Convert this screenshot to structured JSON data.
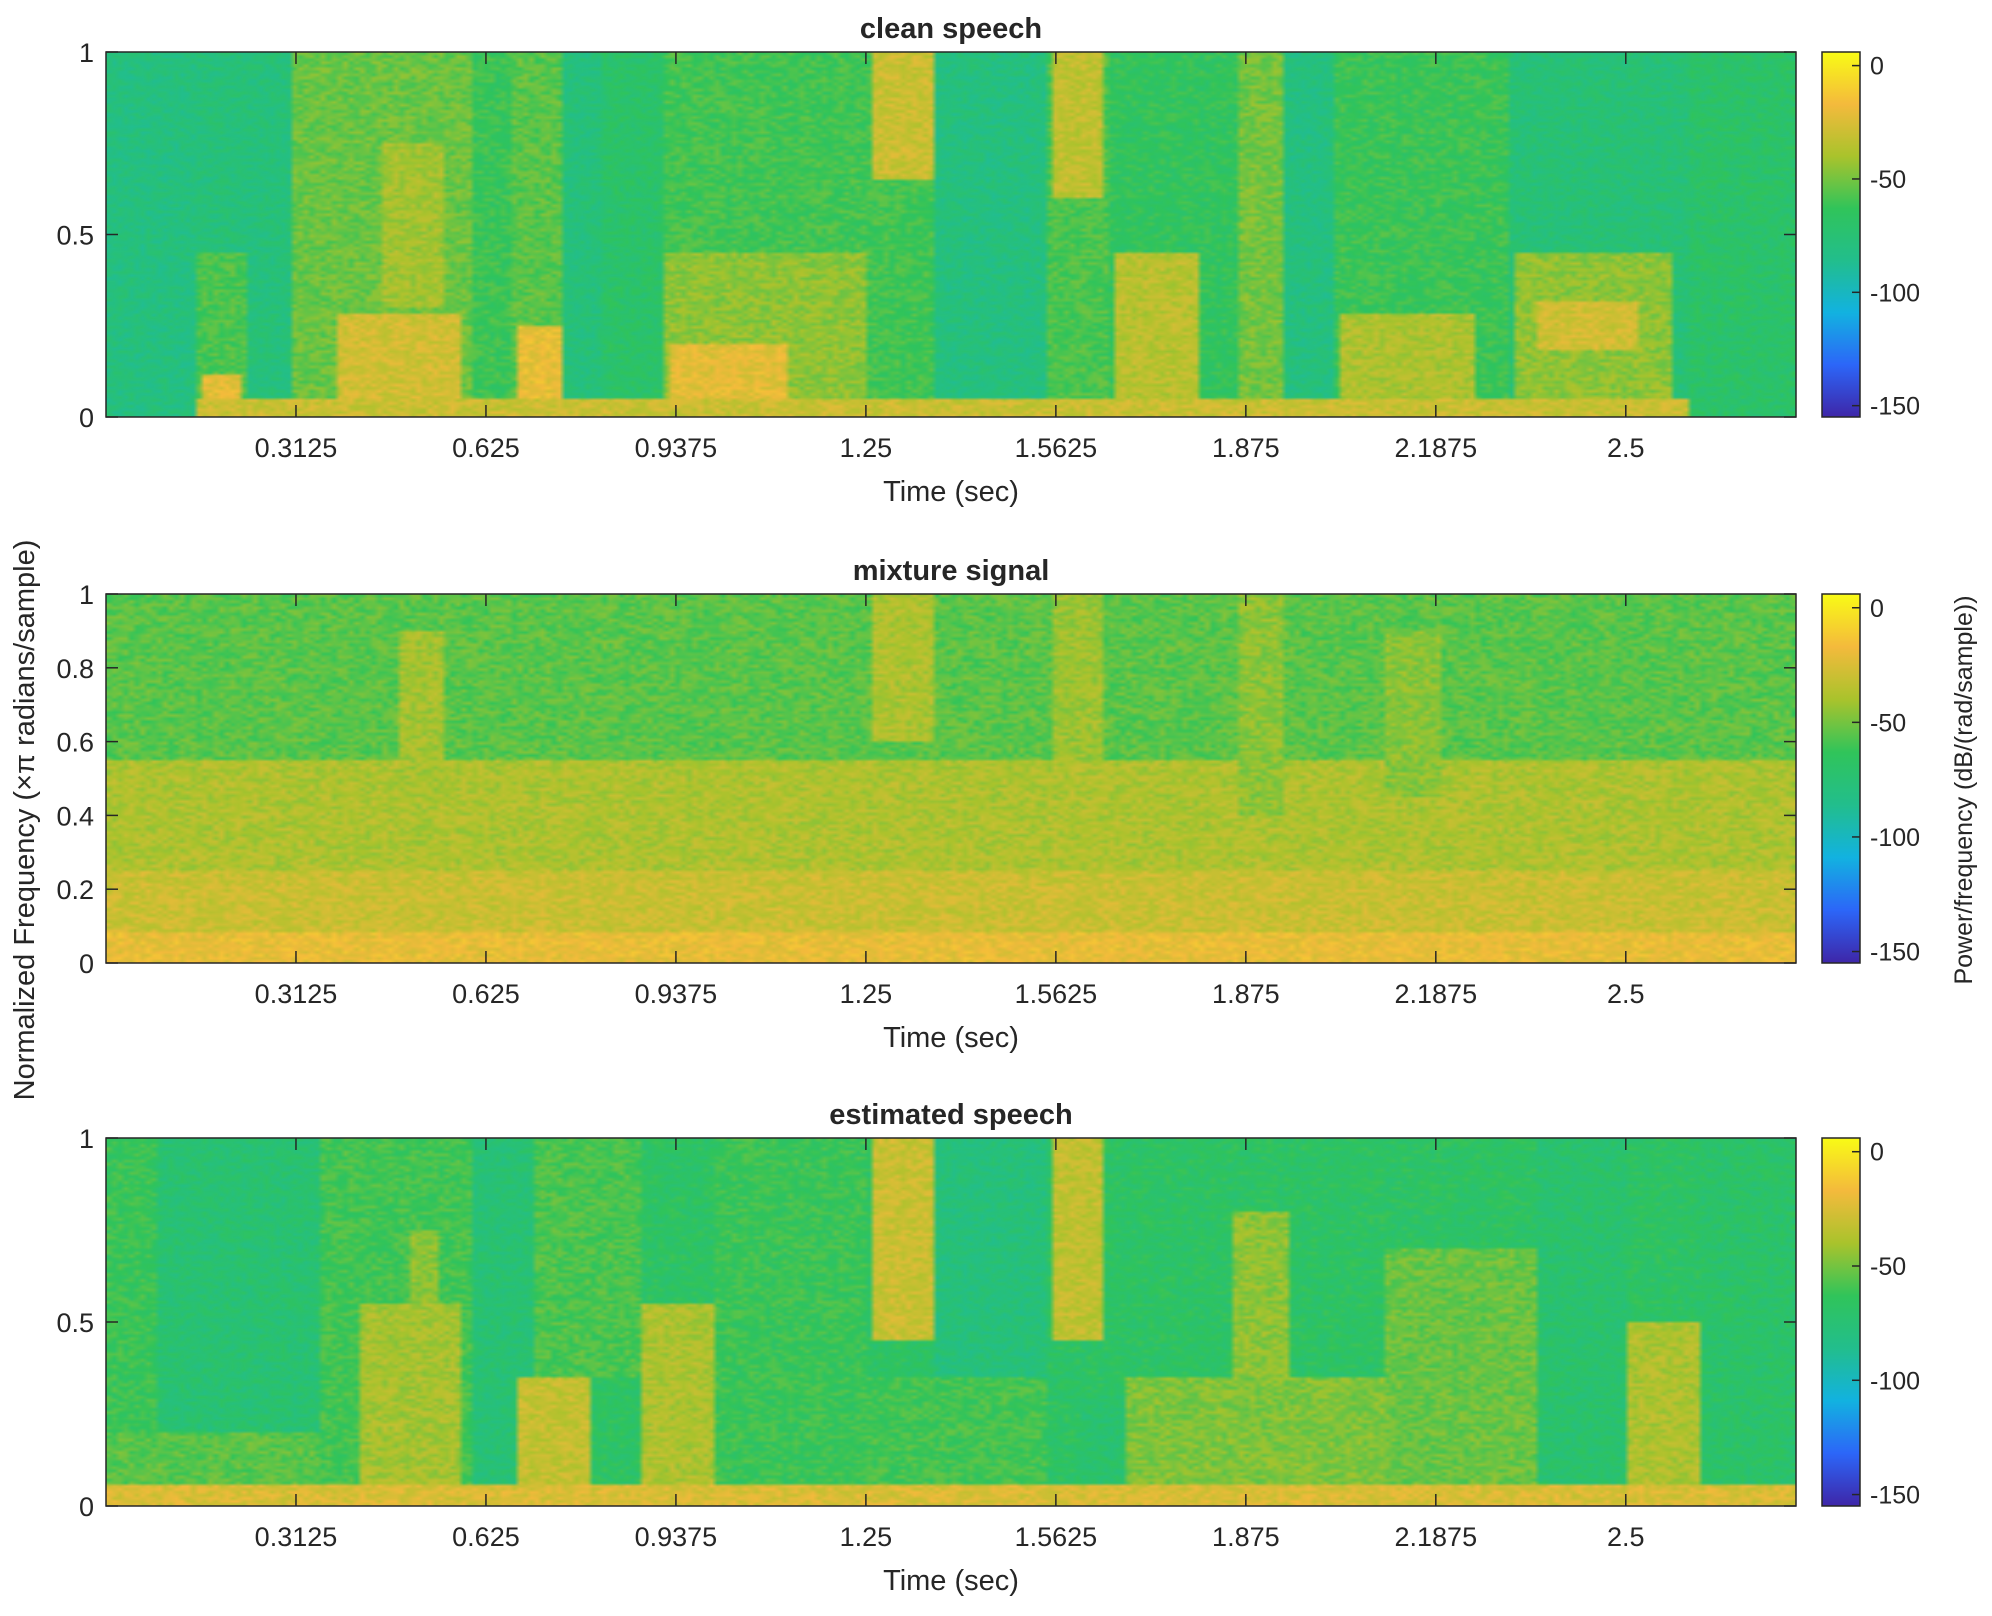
{
  "figure": {
    "ylabel": "Normalized Frequency (×π radians/sample)",
    "colorbar_label": "Power/frequency (dB/(rad/sample))"
  },
  "colormap": [
    "#3e26a8",
    "#2c66f8",
    "#12b2e0",
    "#22be8c",
    "#30c45a",
    "#a9c32c",
    "#f4ba3c",
    "#f9fb15"
  ],
  "chart_data": [
    {
      "type": "heatmap",
      "title": "clean speech",
      "xlabel": "Time (sec)",
      "x_ticks": [
        0.3125,
        0.625,
        0.9375,
        1.25,
        1.5625,
        1.875,
        2.1875,
        2.5
      ],
      "x_tick_labels": [
        "0.3125",
        "0.625",
        "0.9375",
        "1.25",
        "1.5625",
        "1.875",
        "2.1875",
        "2.5"
      ],
      "xlim": [
        0,
        2.78
      ],
      "y_ticks": [
        0,
        0.5,
        1
      ],
      "y_tick_labels": [
        "0",
        "0.5",
        "1"
      ],
      "ylim": [
        0,
        1
      ],
      "colorbar": {
        "ticks": [
          0,
          -50,
          -100,
          -150
        ],
        "tick_labels": [
          "0",
          "-50",
          "-100",
          "-150"
        ],
        "range": [
          -155,
          6
        ]
      },
      "background_db": -75,
      "regions": [
        {
          "t": [
            0.0,
            0.15
          ],
          "f": [
            0.0,
            1.0
          ],
          "db": -80
        },
        {
          "t": [
            0.15,
            0.31
          ],
          "f": [
            0.0,
            1.0
          ],
          "db": -78
        },
        {
          "t": [
            0.15,
            0.23
          ],
          "f": [
            0.0,
            0.45
          ],
          "db": -58
        },
        {
          "t": [
            0.16,
            0.22
          ],
          "f": [
            0.0,
            0.12
          ],
          "db": -22
        },
        {
          "t": [
            0.31,
            0.6
          ],
          "f": [
            0.0,
            1.0
          ],
          "db": -52
        },
        {
          "t": [
            0.38,
            0.58
          ],
          "f": [
            0.0,
            0.28
          ],
          "db": -28
        },
        {
          "t": [
            0.45,
            0.56
          ],
          "f": [
            0.3,
            0.75
          ],
          "db": -40
        },
        {
          "t": [
            0.6,
            0.67
          ],
          "f": [
            0.0,
            1.0
          ],
          "db": -62
        },
        {
          "t": [
            0.67,
            0.75
          ],
          "f": [
            0.0,
            1.0
          ],
          "db": -55
        },
        {
          "t": [
            0.68,
            0.76
          ],
          "f": [
            0.0,
            0.25
          ],
          "db": -20
        },
        {
          "t": [
            0.75,
            0.82
          ],
          "f": [
            0.0,
            1.0
          ],
          "db": -78
        },
        {
          "t": [
            0.82,
            0.92
          ],
          "f": [
            0.0,
            1.0
          ],
          "db": -70
        },
        {
          "t": [
            0.92,
            1.25
          ],
          "f": [
            0.0,
            0.45
          ],
          "db": -45
        },
        {
          "t": [
            0.93,
            1.12
          ],
          "f": [
            0.0,
            0.2
          ],
          "db": -22
        },
        {
          "t": [
            0.92,
            1.25
          ],
          "f": [
            0.45,
            1.0
          ],
          "db": -60
        },
        {
          "t": [
            1.25,
            1.36
          ],
          "f": [
            0.0,
            1.0
          ],
          "db": -60
        },
        {
          "t": [
            1.26,
            1.36
          ],
          "f": [
            0.65,
            1.0
          ],
          "db": -30
        },
        {
          "t": [
            1.36,
            1.55
          ],
          "f": [
            0.0,
            1.0
          ],
          "db": -80
        },
        {
          "t": [
            1.55,
            1.65
          ],
          "f": [
            0.0,
            1.0
          ],
          "db": -58
        },
        {
          "t": [
            1.56,
            1.64
          ],
          "f": [
            0.6,
            1.0
          ],
          "db": -33
        },
        {
          "t": [
            1.65,
            1.86
          ],
          "f": [
            0.0,
            1.0
          ],
          "db": -65
        },
        {
          "t": [
            1.66,
            1.8
          ],
          "f": [
            0.0,
            0.45
          ],
          "db": -35
        },
        {
          "t": [
            1.86,
            1.94
          ],
          "f": [
            0.0,
            1.0
          ],
          "db": -50
        },
        {
          "t": [
            1.94,
            2.02
          ],
          "f": [
            0.0,
            1.0
          ],
          "db": -80
        },
        {
          "t": [
            2.02,
            2.31
          ],
          "f": [
            0.0,
            1.0
          ],
          "db": -62
        },
        {
          "t": [
            2.03,
            2.25
          ],
          "f": [
            0.0,
            0.28
          ],
          "db": -38
        },
        {
          "t": [
            2.31,
            2.6
          ],
          "f": [
            0.0,
            1.0
          ],
          "db": -76
        },
        {
          "t": [
            2.32,
            2.58
          ],
          "f": [
            0.0,
            0.45
          ],
          "db": -45
        },
        {
          "t": [
            2.35,
            2.52
          ],
          "f": [
            0.18,
            0.32
          ],
          "db": -28
        },
        {
          "t": [
            2.6,
            2.78
          ],
          "f": [
            0.0,
            1.0
          ],
          "db": -70
        },
        {
          "t": [
            0.15,
            2.6
          ],
          "f": [
            0.0,
            0.05
          ],
          "db": -30
        }
      ]
    },
    {
      "type": "heatmap",
      "title": "mixture signal",
      "xlabel": "Time (sec)",
      "x_ticks": [
        0.3125,
        0.625,
        0.9375,
        1.25,
        1.5625,
        1.875,
        2.1875,
        2.5
      ],
      "x_tick_labels": [
        "0.3125",
        "0.625",
        "0.9375",
        "1.25",
        "1.5625",
        "1.875",
        "2.1875",
        "2.5"
      ],
      "xlim": [
        0,
        2.78
      ],
      "y_ticks": [
        0,
        0.2,
        0.4,
        0.6,
        0.8,
        1
      ],
      "y_tick_labels": [
        "0",
        "0.2",
        "0.4",
        "0.6",
        "0.8",
        "1"
      ],
      "ylim": [
        0,
        1
      ],
      "colorbar": {
        "ticks": [
          0,
          -50,
          -100,
          -150
        ],
        "tick_labels": [
          "0",
          "-50",
          "-100",
          "-150"
        ],
        "range": [
          -155,
          6
        ]
      },
      "background_db": -55,
      "regions": [
        {
          "t": [
            0.0,
            2.78
          ],
          "f": [
            0.0,
            0.55
          ],
          "db": -38
        },
        {
          "t": [
            0.0,
            2.78
          ],
          "f": [
            0.0,
            0.25
          ],
          "db": -30
        },
        {
          "t": [
            0.0,
            2.78
          ],
          "f": [
            0.0,
            0.08
          ],
          "db": -20
        },
        {
          "t": [
            0.0,
            2.78
          ],
          "f": [
            0.55,
            1.0
          ],
          "db": -55
        },
        {
          "t": [
            0.48,
            0.56
          ],
          "f": [
            0.45,
            0.9
          ],
          "db": -40
        },
        {
          "t": [
            1.26,
            1.36
          ],
          "f": [
            0.6,
            1.0
          ],
          "db": -38
        },
        {
          "t": [
            1.56,
            1.64
          ],
          "f": [
            0.55,
            1.0
          ],
          "db": -42
        },
        {
          "t": [
            1.86,
            1.94
          ],
          "f": [
            0.4,
            1.0
          ],
          "db": -45
        },
        {
          "t": [
            2.1,
            2.2
          ],
          "f": [
            0.45,
            0.9
          ],
          "db": -46
        }
      ]
    },
    {
      "type": "heatmap",
      "title": "estimated speech",
      "xlabel": "Time (sec)",
      "x_ticks": [
        0.3125,
        0.625,
        0.9375,
        1.25,
        1.5625,
        1.875,
        2.1875,
        2.5
      ],
      "x_tick_labels": [
        "0.3125",
        "0.625",
        "0.9375",
        "1.25",
        "1.5625",
        "1.875",
        "2.1875",
        "2.5"
      ],
      "xlim": [
        0,
        2.78
      ],
      "y_ticks": [
        0,
        0.5,
        1
      ],
      "y_tick_labels": [
        "0",
        "0.5",
        "1"
      ],
      "ylim": [
        0,
        1
      ],
      "colorbar": {
        "ticks": [
          0,
          -50,
          -100,
          -150
        ],
        "tick_labels": [
          "0",
          "-50",
          "-100",
          "-150"
        ],
        "range": [
          -155,
          6
        ]
      },
      "background_db": -68,
      "regions": [
        {
          "t": [
            0.0,
            0.08
          ],
          "f": [
            0.0,
            1.0
          ],
          "db": -62
        },
        {
          "t": [
            0.08,
            0.35
          ],
          "f": [
            0.0,
            1.0
          ],
          "db": -74
        },
        {
          "t": [
            0.0,
            0.35
          ],
          "f": [
            0.0,
            0.2
          ],
          "db": -55
        },
        {
          "t": [
            0.35,
            0.6
          ],
          "f": [
            0.0,
            1.0
          ],
          "db": -60
        },
        {
          "t": [
            0.42,
            0.58
          ],
          "f": [
            0.0,
            0.55
          ],
          "db": -40
        },
        {
          "t": [
            0.5,
            0.55
          ],
          "f": [
            0.55,
            0.75
          ],
          "db": -45
        },
        {
          "t": [
            0.6,
            0.7
          ],
          "f": [
            0.0,
            1.0
          ],
          "db": -75
        },
        {
          "t": [
            0.68,
            0.8
          ],
          "f": [
            0.0,
            0.35
          ],
          "db": -32
        },
        {
          "t": [
            0.7,
            0.88
          ],
          "f": [
            0.35,
            1.0
          ],
          "db": -58
        },
        {
          "t": [
            0.88,
            1.0
          ],
          "f": [
            0.0,
            0.55
          ],
          "db": -38
        },
        {
          "t": [
            1.0,
            1.25
          ],
          "f": [
            0.0,
            1.0
          ],
          "db": -62
        },
        {
          "t": [
            1.26,
            1.36
          ],
          "f": [
            0.45,
            1.0
          ],
          "db": -30
        },
        {
          "t": [
            1.36,
            1.55
          ],
          "f": [
            0.0,
            1.0
          ],
          "db": -78
        },
        {
          "t": [
            1.25,
            1.55
          ],
          "f": [
            0.0,
            0.35
          ],
          "db": -60
        },
        {
          "t": [
            1.56,
            1.64
          ],
          "f": [
            0.45,
            1.0
          ],
          "db": -33
        },
        {
          "t": [
            1.6,
            1.68
          ],
          "f": [
            0.0,
            0.3
          ],
          "db": -72
        },
        {
          "t": [
            1.68,
            2.1
          ],
          "f": [
            0.0,
            0.35
          ],
          "db": -48
        },
        {
          "t": [
            1.85,
            1.95
          ],
          "f": [
            0.35,
            0.8
          ],
          "db": -45
        },
        {
          "t": [
            2.1,
            2.35
          ],
          "f": [
            0.0,
            0.7
          ],
          "db": -52
        },
        {
          "t": [
            2.35,
            2.5
          ],
          "f": [
            0.0,
            1.0
          ],
          "db": -72
        },
        {
          "t": [
            2.5,
            2.62
          ],
          "f": [
            0.0,
            0.5
          ],
          "db": -38
        },
        {
          "t": [
            2.62,
            2.78
          ],
          "f": [
            0.0,
            1.0
          ],
          "db": -70
        },
        {
          "t": [
            0.0,
            2.78
          ],
          "f": [
            0.0,
            0.06
          ],
          "db": -25
        }
      ]
    }
  ]
}
